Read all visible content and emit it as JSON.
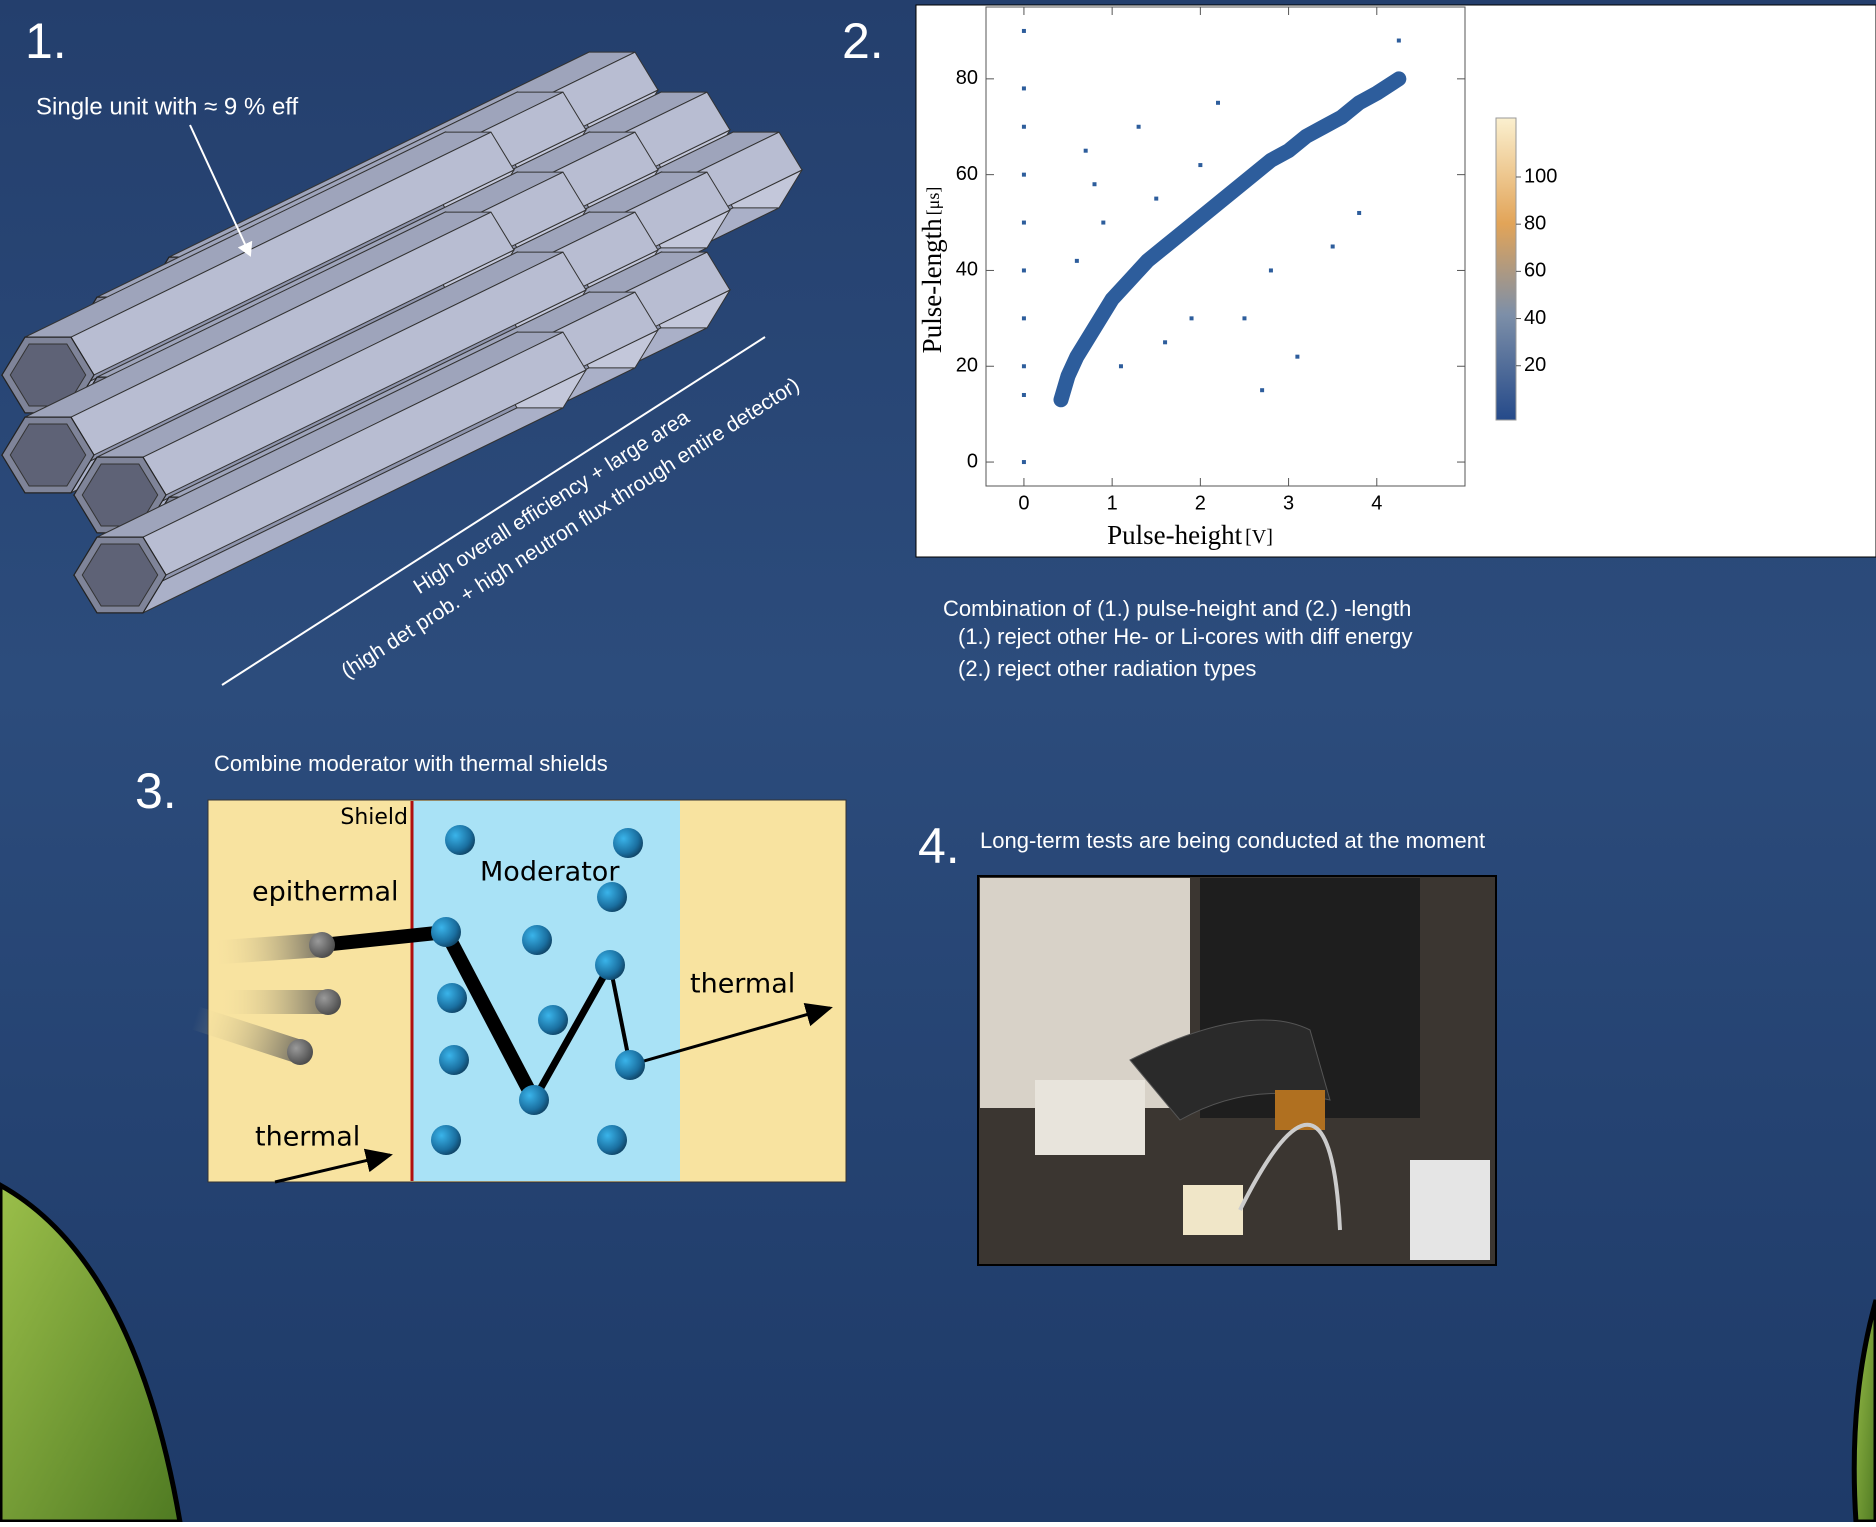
{
  "section1": {
    "number": "1.",
    "caption": "Single unit with ≈ 9 % eff",
    "line1": "High overall efficiency + large area",
    "line2": "(high det prob. + high neutron flux through entire detector)"
  },
  "section2": {
    "number": "2.",
    "chart_data": {
      "type": "scatter",
      "xlabel": "Pulse-height",
      "xunit": "[V]",
      "ylabel": "Pulse-length",
      "yunit": "[μs]",
      "xlim": [
        -0.43,
        5.0
      ],
      "ylim": [
        -5,
        95
      ],
      "xticks": [
        0,
        1,
        2,
        3,
        4
      ],
      "yticks": [
        0,
        20,
        40,
        60,
        80
      ],
      "color": "#2d5d9c",
      "ridge": {
        "x": [
          0.42,
          0.5,
          0.6,
          0.7,
          0.8,
          1.0,
          1.2,
          1.4,
          1.6,
          1.8,
          2.0,
          2.2,
          2.4,
          2.6,
          2.8,
          3.0,
          3.2,
          3.4,
          3.6,
          3.8,
          4.0,
          4.25
        ],
        "y": [
          13,
          18,
          22,
          25,
          28,
          34,
          38,
          42,
          45,
          48,
          51,
          54,
          57,
          60,
          63,
          65,
          68,
          70,
          72,
          75,
          77,
          80
        ]
      },
      "points": {
        "x": [
          0,
          0,
          0,
          0,
          0,
          0,
          0,
          0,
          0,
          0,
          0.7,
          0.9,
          1.3,
          1.6,
          2.5,
          3.1,
          2.8,
          1.1,
          0.8,
          2.2,
          3.5,
          1.9,
          2.7,
          3.8,
          1.5,
          0.6,
          2.0,
          4.25
        ],
        "y": [
          14,
          20,
          30,
          40,
          50,
          60,
          70,
          78,
          90,
          0,
          65,
          50,
          70,
          25,
          30,
          22,
          40,
          20,
          58,
          75,
          45,
          30,
          15,
          52,
          55,
          42,
          62,
          88
        ]
      },
      "colorbar_lim": [
        -3,
        125
      ],
      "colorbar_ticks": [
        20,
        40,
        60,
        80,
        100
      ]
    },
    "notes": [
      "Combination of  (1.) pulse-height and  (2.) -length",
      "(1.)  reject other He- or Li-cores with diff energy",
      "(2.) reject other radiation types"
    ]
  },
  "section3": {
    "number": "3.",
    "caption": "Combine moderator with thermal shields",
    "labels": {
      "shield": "Shield",
      "moderator": "Moderator",
      "epithermal": "epithermal",
      "thermal_out": "thermal",
      "thermal_in": "thermal"
    }
  },
  "section4": {
    "number": "4.",
    "caption": "Long-term tests are being  conducted at the moment"
  }
}
